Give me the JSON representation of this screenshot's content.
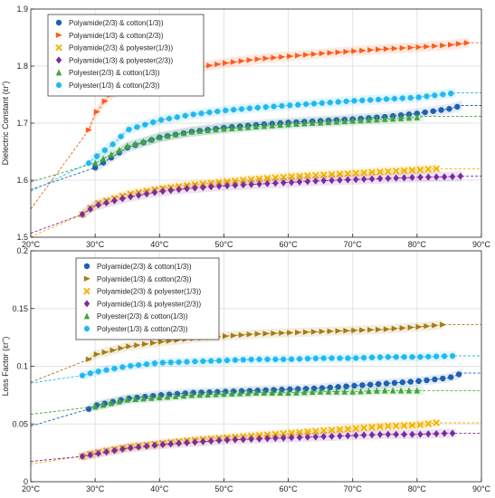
{
  "chart_data": [
    {
      "type": "scatter",
      "title": "",
      "xlabel": "",
      "ylabel": "Dielectric Constant (εr')",
      "xlim": [
        20,
        90
      ],
      "ylim": [
        1.5,
        1.9
      ],
      "xticks": [
        "20°C",
        "30°C",
        "40°C",
        "50°C",
        "60°C",
        "70°C",
        "80°C",
        "90°C"
      ],
      "yticks": [
        "1.5",
        "1.6",
        "1.7",
        "1.8",
        "1.9"
      ],
      "grid": true,
      "legend_position": "top-left",
      "series": [
        {
          "name": "Polyamide(2/3) & cotton(1/3))",
          "marker": "circle",
          "color": "#1f5fb4",
          "x": [
            30,
            35,
            40,
            45,
            50,
            55,
            60,
            65,
            70,
            75,
            80,
            85,
            87
          ],
          "y": [
            1.622,
            1.657,
            1.675,
            1.685,
            1.692,
            1.697,
            1.701,
            1.704,
            1.707,
            1.711,
            1.717,
            1.725,
            1.731
          ]
        },
        {
          "name": "Polyamide(1/3) & cotton(2/3))",
          "marker": "triangle-right",
          "color": "#ff5a1a",
          "x": [
            29,
            30,
            32,
            35,
            40,
            45,
            50,
            55,
            60,
            65,
            70,
            75,
            80,
            85,
            88
          ],
          "y": [
            1.688,
            1.716,
            1.746,
            1.768,
            1.785,
            1.796,
            1.805,
            1.812,
            1.817,
            1.822,
            1.826,
            1.83,
            1.833,
            1.837,
            1.841
          ]
        },
        {
          "name": "Polyamide(2/3) & polyester(1/3))",
          "marker": "x",
          "color": "#f5b400",
          "x": [
            28,
            30,
            35,
            40,
            45,
            50,
            55,
            60,
            65,
            70,
            75,
            80,
            83
          ],
          "y": [
            1.54,
            1.558,
            1.575,
            1.585,
            1.592,
            1.597,
            1.602,
            1.606,
            1.609,
            1.612,
            1.615,
            1.618,
            1.62
          ]
        },
        {
          "name": "Polyamide(1/3) & polyester(2/3))",
          "marker": "diamond",
          "color": "#7b2aa0",
          "x": [
            28,
            30,
            35,
            40,
            45,
            50,
            55,
            60,
            65,
            70,
            75,
            80,
            85,
            87
          ],
          "y": [
            1.54,
            1.555,
            1.57,
            1.58,
            1.586,
            1.59,
            1.593,
            1.596,
            1.599,
            1.601,
            1.603,
            1.605,
            1.606,
            1.607
          ]
        },
        {
          "name": "Polyester(2/3) & cotton(1/3))",
          "marker": "triangle-up",
          "color": "#3ea53e",
          "x": [
            30,
            35,
            40,
            45,
            50,
            55,
            60,
            65,
            70,
            75,
            80,
            81
          ],
          "y": [
            1.63,
            1.66,
            1.675,
            1.685,
            1.69,
            1.694,
            1.698,
            1.701,
            1.704,
            1.707,
            1.71,
            1.712
          ]
        },
        {
          "name": "Polyester(1/3) & cotton(2/3))",
          "marker": "star",
          "color": "#1fb8f0",
          "x": [
            29,
            30,
            33,
            35,
            40,
            45,
            50,
            55,
            60,
            65,
            70,
            75,
            80,
            86
          ],
          "y": [
            1.63,
            1.64,
            1.665,
            1.688,
            1.705,
            1.715,
            1.722,
            1.727,
            1.731,
            1.735,
            1.739,
            1.742,
            1.745,
            1.753
          ]
        }
      ]
    },
    {
      "type": "scatter",
      "title": "",
      "xlabel": "",
      "ylabel": "Loss Factor (εr\")",
      "xlim": [
        20,
        90
      ],
      "ylim": [
        0,
        0.2
      ],
      "xticks": [
        "20°C",
        "30°C",
        "40°C",
        "50°C",
        "60°C",
        "70°C",
        "80°C",
        "90°C"
      ],
      "yticks": [
        "0",
        "0.05",
        "0.1",
        "0.15",
        "0.2"
      ],
      "grid": true,
      "legend_position": "top-left",
      "series": [
        {
          "name": "Polyamide(2/3) & cotton(1/3))",
          "marker": "circle",
          "color": "#1f5fb4",
          "x": [
            29,
            30,
            35,
            40,
            45,
            50,
            55,
            60,
            65,
            70,
            75,
            80,
            85,
            87
          ],
          "y": [
            0.063,
            0.066,
            0.072,
            0.075,
            0.077,
            0.078,
            0.079,
            0.08,
            0.081,
            0.083,
            0.085,
            0.087,
            0.09,
            0.094
          ]
        },
        {
          "name": "Polyamide(1/3) & cotton(2/3))",
          "marker": "triangle-right",
          "color": "#a67b10",
          "x": [
            29,
            30,
            35,
            40,
            45,
            50,
            55,
            60,
            65,
            70,
            75,
            80,
            84
          ],
          "y": [
            0.106,
            0.11,
            0.117,
            0.121,
            0.124,
            0.126,
            0.128,
            0.129,
            0.13,
            0.131,
            0.132,
            0.134,
            0.136
          ]
        },
        {
          "name": "Polyamide(2/3) & polyester(1/3))",
          "marker": "x",
          "color": "#f5b400",
          "x": [
            28,
            30,
            35,
            40,
            45,
            50,
            55,
            60,
            65,
            70,
            75,
            80,
            83
          ],
          "y": [
            0.022,
            0.025,
            0.03,
            0.033,
            0.036,
            0.038,
            0.04,
            0.042,
            0.044,
            0.046,
            0.048,
            0.049,
            0.051
          ]
        },
        {
          "name": "Polyamide(1/3) & polyester(2/3))",
          "marker": "diamond",
          "color": "#7b2aa0",
          "x": [
            28,
            30,
            35,
            40,
            45,
            50,
            55,
            60,
            65,
            70,
            75,
            80,
            85,
            86
          ],
          "y": [
            0.022,
            0.024,
            0.029,
            0.032,
            0.034,
            0.036,
            0.037,
            0.038,
            0.039,
            0.04,
            0.041,
            0.041,
            0.042,
            0.042
          ]
        },
        {
          "name": "Polyester(2/3) & cotton(1/3))",
          "marker": "triangle-up",
          "color": "#3ea53e",
          "x": [
            30,
            35,
            40,
            45,
            50,
            55,
            60,
            65,
            70,
            75,
            80,
            81
          ],
          "y": [
            0.065,
            0.071,
            0.073,
            0.075,
            0.076,
            0.077,
            0.077,
            0.078,
            0.078,
            0.079,
            0.079,
            0.079
          ]
        },
        {
          "name": "Polyester(1/3) & cotton(2/3))",
          "marker": "star",
          "color": "#1fb8f0",
          "x": [
            28,
            30,
            35,
            40,
            45,
            50,
            55,
            60,
            65,
            70,
            75,
            80,
            86
          ],
          "y": [
            0.092,
            0.095,
            0.1,
            0.103,
            0.104,
            0.105,
            0.106,
            0.106,
            0.107,
            0.107,
            0.108,
            0.108,
            0.109
          ]
        }
      ]
    }
  ]
}
